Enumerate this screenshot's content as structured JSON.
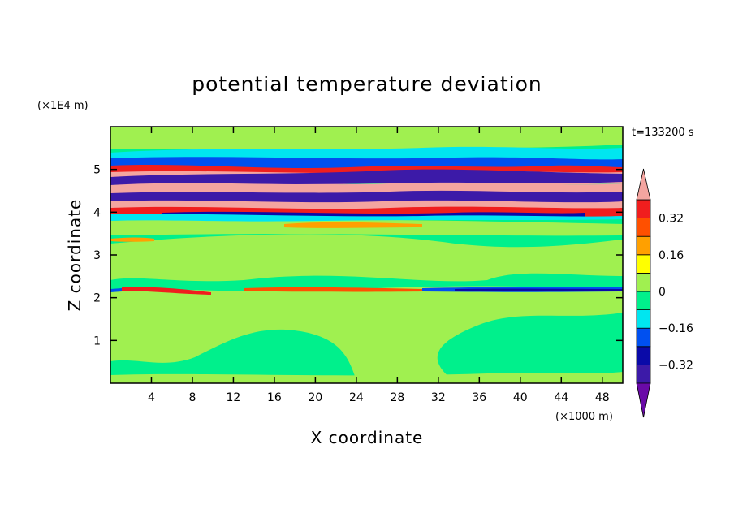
{
  "chart_data": {
    "type": "heatmap",
    "title": "potential temperature deviation",
    "xlabel": "X coordinate",
    "ylabel": "Z coordinate",
    "x_unit": "(×1000 m)",
    "y_unit": "(×1E4 m)",
    "time_label": "t=133200 s",
    "xlim": [
      0,
      50
    ],
    "ylim": [
      0,
      6
    ],
    "x_ticks": [
      4,
      8,
      12,
      16,
      20,
      24,
      28,
      32,
      36,
      40,
      44,
      48
    ],
    "y_ticks": [
      1,
      2,
      3,
      4,
      5
    ],
    "colorbar": {
      "levels": [
        -0.48,
        -0.4,
        -0.32,
        -0.24,
        -0.16,
        -0.08,
        0,
        0.08,
        0.16,
        0.24,
        0.32,
        0.4,
        0.48
      ],
      "colors": [
        "#6a0aa8",
        "#3c1aa8",
        "#0a0aa8",
        "#0050f0",
        "#00e6f0",
        "#00f08c",
        "#a0f050",
        "#ffff00",
        "#ffa000",
        "#ff5000",
        "#f01e1e",
        "#f4a5a0"
      ],
      "tick_values": [
        -0.32,
        -0.16,
        0,
        0.16,
        0.32
      ],
      "tick_labels": [
        "−0.32",
        "−0.16",
        "0",
        "0.16",
        "0.32"
      ]
    }
  }
}
